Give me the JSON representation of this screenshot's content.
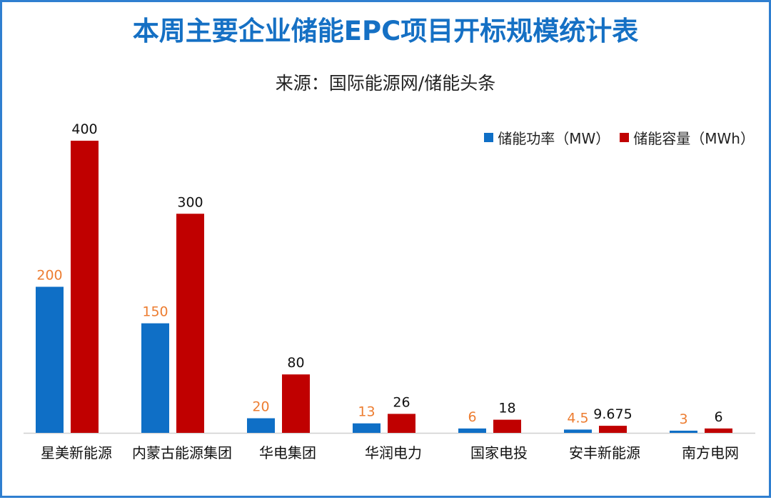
{
  "title": "本周主要企业储能EPC项目开标规模统计表",
  "subtitle": "来源：国际能源网/储能头条",
  "colors": {
    "power": "#0f6fc6",
    "capacity": "#c00000",
    "power_label": "#ed7d31",
    "capacity_label": "#111111",
    "frame": "#2f7fd0",
    "title": "#1570c4"
  },
  "chart_data": {
    "type": "bar",
    "title": "本周主要企业储能EPC项目开标规模统计表",
    "subtitle": "来源：国际能源网/储能头条",
    "categories": [
      "星美新能源",
      "内蒙古能源集团",
      "华电集团",
      "华润电力",
      "国家电投",
      "安丰新能源",
      "南方电网"
    ],
    "series": [
      {
        "name": "储能功率（MW）",
        "values": [
          200,
          150,
          20,
          13,
          6,
          4.5,
          3
        ],
        "labels": [
          "200",
          "150",
          "20",
          "13",
          "6",
          "4.5",
          "3"
        ]
      },
      {
        "name": "储能容量（MWh）",
        "values": [
          400,
          300,
          80,
          26,
          18,
          9.675,
          6
        ],
        "labels": [
          "400",
          "300",
          "80",
          "26",
          "18",
          "9.675",
          "6"
        ]
      }
    ],
    "ylim": [
      0,
      400
    ],
    "grid": false,
    "legend_position": "top-right",
    "xlabel": "",
    "ylabel": ""
  }
}
